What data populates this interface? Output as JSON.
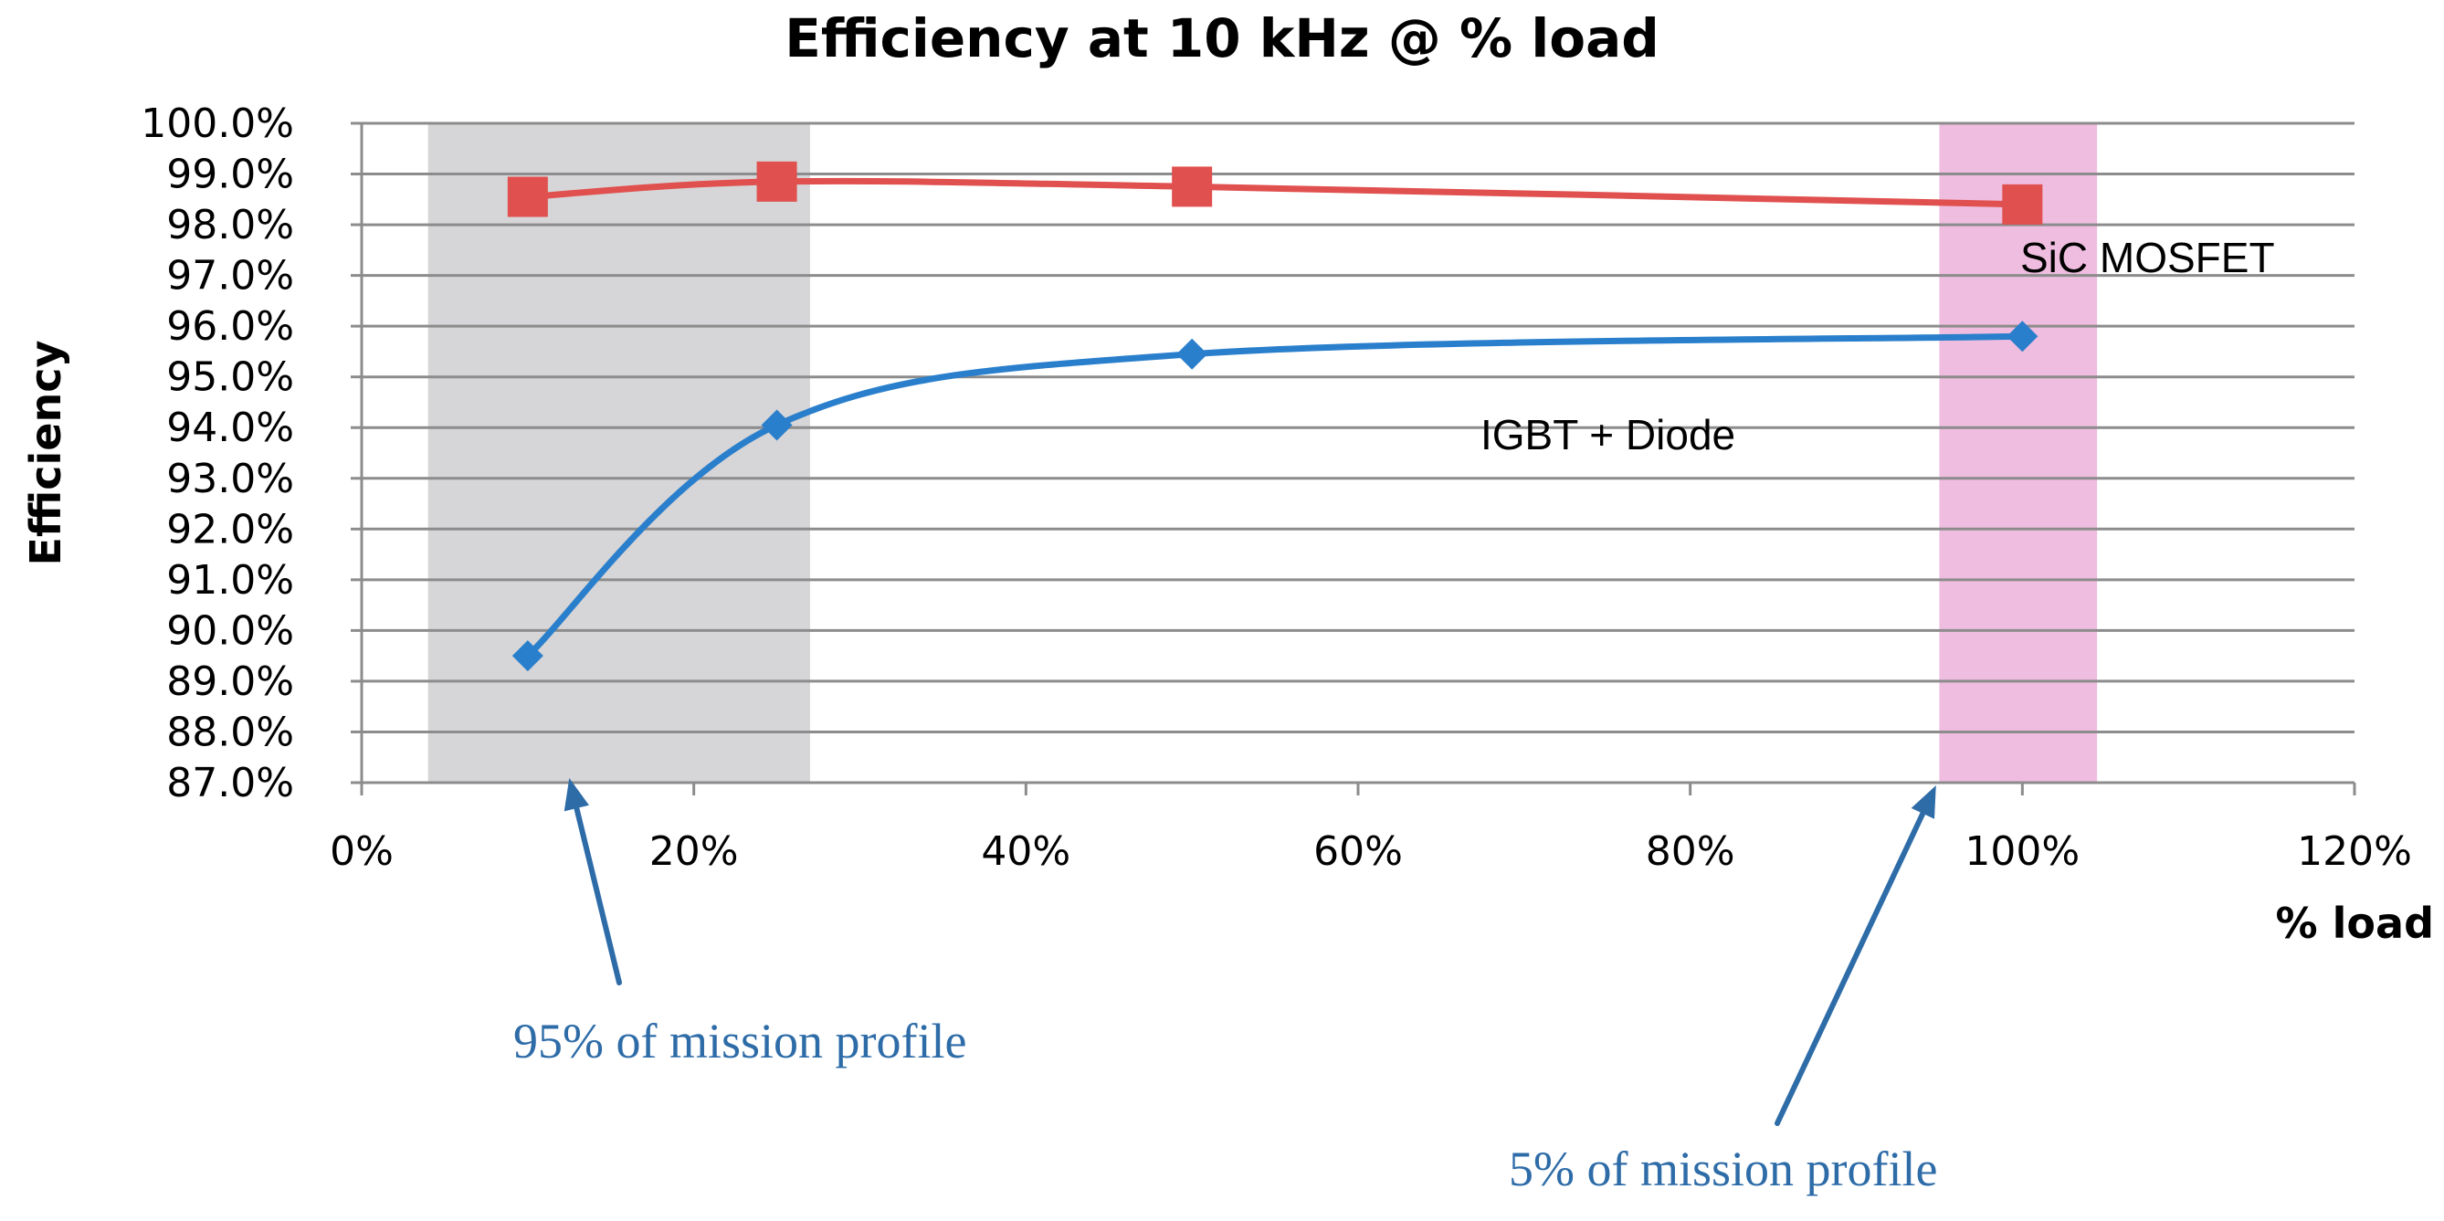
{
  "chart_data": {
    "type": "line",
    "title": "Efficiency at 10 kHz @ % load",
    "xlabel": "% load",
    "ylabel": "Efficiency",
    "xlim": [
      0,
      120
    ],
    "ylim": [
      87,
      100
    ],
    "x_ticks": [
      0,
      20,
      40,
      60,
      80,
      100,
      120
    ],
    "x_tick_labels": [
      "0%",
      "20%",
      "40%",
      "60%",
      "80%",
      "100%",
      "120%"
    ],
    "y_ticks": [
      87,
      88,
      89,
      90,
      91,
      92,
      93,
      94,
      95,
      96,
      97,
      98,
      99,
      100
    ],
    "y_tick_labels": [
      "87.0%",
      "88.0%",
      "89.0%",
      "90.0%",
      "91.0%",
      "92.0%",
      "93.0%",
      "94.0%",
      "95.0%",
      "96.0%",
      "97.0%",
      "98.0%",
      "99.0%",
      "100.0%"
    ],
    "grid": true,
    "series": [
      {
        "name": "SiC MOSFET",
        "label": "SiC MOSFET",
        "color": "#e0504e",
        "marker": "square",
        "x": [
          10,
          25,
          50,
          100
        ],
        "values": [
          98.55,
          98.85,
          98.75,
          98.4
        ]
      },
      {
        "name": "IGBT + Diode",
        "label": "IGBT + Diode",
        "color": "#2a7fcc",
        "marker": "diamond",
        "x": [
          10,
          25,
          50,
          100
        ],
        "values": [
          89.5,
          94.05,
          95.45,
          95.8
        ]
      }
    ],
    "shaded_regions": [
      {
        "name": "low-load-band",
        "x_range": [
          4,
          27
        ],
        "color": "#d6d5d7"
      },
      {
        "name": "full-load-band",
        "x_range": [
          95,
          104.5
        ],
        "color": "#efbddf"
      }
    ],
    "annotations": [
      {
        "text": "95% of mission profile",
        "points_to_x": 12.5,
        "color": "#2e6ca8"
      },
      {
        "text": "5% of mission profile",
        "points_to_x": 94.8,
        "color": "#2e6ca8"
      }
    ]
  }
}
